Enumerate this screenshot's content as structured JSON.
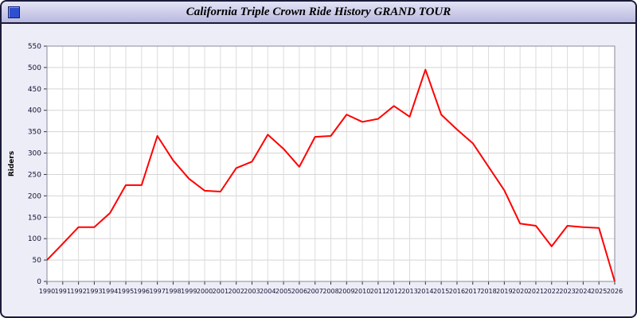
{
  "window": {
    "title": "California Triple Crown Ride History GRAND TOUR",
    "icon_color": "#2d4fd0"
  },
  "chart_data": {
    "type": "line",
    "title": "California Triple Crown Ride History GRAND TOUR",
    "xlabel": "",
    "ylabel": "Riders",
    "ylim": [
      0,
      550
    ],
    "ytick_step": 50,
    "grid": true,
    "legend": "none",
    "line_color": "#ff0000",
    "x": [
      1990,
      1991,
      1992,
      1993,
      1994,
      1995,
      1996,
      1997,
      1998,
      1999,
      2000,
      2001,
      2002,
      2003,
      2004,
      2005,
      2006,
      2007,
      2008,
      2009,
      2010,
      2011,
      2012,
      2013,
      2014,
      2015,
      2016,
      2017,
      2018,
      2019,
      2020,
      2021,
      2022,
      2023,
      2024,
      2025,
      2026
    ],
    "values": [
      50,
      88,
      127,
      127,
      160,
      225,
      225,
      340,
      283,
      240,
      212,
      210,
      265,
      280,
      343,
      310,
      268,
      338,
      340,
      390,
      373,
      380,
      410,
      385,
      495,
      390,
      355,
      323,
      268,
      213,
      135,
      130,
      82,
      130,
      127,
      125,
      0
    ]
  }
}
